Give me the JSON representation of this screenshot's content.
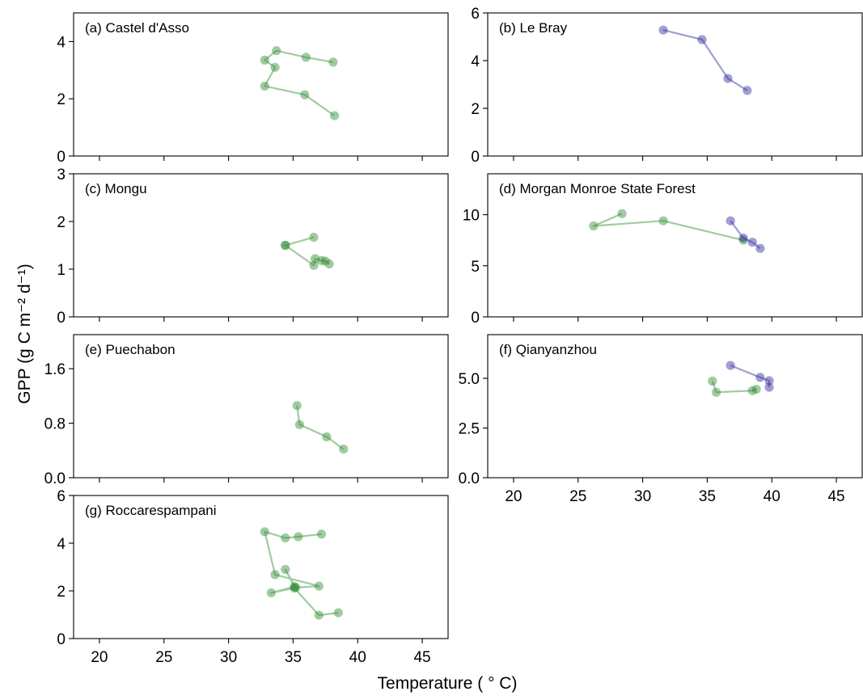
{
  "figure": {
    "xlabel": "Temperature ( ° C)",
    "ylabel": "GPP (g C m⁻² d⁻¹)"
  },
  "colors": {
    "green": "#2e8b2e",
    "blue": "#2b2b9e"
  },
  "chart_data": [
    {
      "type": "line",
      "title": "(a) Castel d'Asso",
      "xlim": [
        18,
        47
      ],
      "ylim": [
        0,
        5
      ],
      "yticks": [
        0,
        2,
        4
      ],
      "xticks": [
        20,
        25,
        30,
        35,
        40,
        45
      ],
      "show_xtick_labels": false,
      "series": [
        {
          "color": "green",
          "x": [
            38.2,
            35.9,
            32.8,
            33.6,
            32.8,
            33.7,
            36.0,
            38.1
          ],
          "y": [
            1.41,
            2.14,
            2.44,
            3.1,
            3.35,
            3.68,
            3.45,
            3.28
          ]
        }
      ]
    },
    {
      "type": "line",
      "title": "(b) Le Bray",
      "xlim": [
        18,
        47
      ],
      "ylim": [
        0,
        6
      ],
      "yticks": [
        0,
        2,
        4,
        6
      ],
      "xticks": [
        20,
        25,
        30,
        35,
        40,
        45
      ],
      "show_xtick_labels": false,
      "series": [
        {
          "color": "blue",
          "x": [
            31.6,
            34.6,
            36.6,
            38.1
          ],
          "y": [
            5.28,
            4.88,
            3.25,
            2.75
          ]
        }
      ]
    },
    {
      "type": "line",
      "title": "(c) Mongu",
      "xlim": [
        18,
        47
      ],
      "ylim": [
        0,
        3
      ],
      "yticks": [
        0,
        1,
        2,
        3
      ],
      "xticks": [
        20,
        25,
        30,
        35,
        40,
        45
      ],
      "show_xtick_labels": false,
      "series": [
        {
          "color": "green",
          "x": [
            36.6,
            34.4,
            34.4,
            36.6,
            36.7,
            37.2,
            37.5,
            37.8
          ],
          "y": [
            1.67,
            1.5,
            1.5,
            1.08,
            1.22,
            1.18,
            1.17,
            1.11
          ]
        }
      ]
    },
    {
      "type": "line",
      "title": "(d) Morgan Monroe State Forest",
      "xlim": [
        18,
        47
      ],
      "ylim": [
        0,
        14
      ],
      "yticks": [
        0,
        5,
        10
      ],
      "xticks": [
        20,
        25,
        30,
        35,
        40,
        45
      ],
      "show_xtick_labels": false,
      "series": [
        {
          "color": "green",
          "x": [
            28.4,
            26.2,
            31.6,
            37.8
          ],
          "y": [
            10.1,
            8.9,
            9.4,
            7.5
          ]
        },
        {
          "color": "blue",
          "x": [
            36.8,
            37.8,
            38.5,
            39.1
          ],
          "y": [
            9.4,
            7.7,
            7.3,
            6.7
          ]
        }
      ]
    },
    {
      "type": "line",
      "title": "(e) Puechabon",
      "xlim": [
        18,
        47
      ],
      "ylim": [
        0,
        2.1
      ],
      "yticks": [
        0.0,
        0.8,
        1.6
      ],
      "ytick_labels": [
        "0.0",
        "0.8",
        "1.6"
      ],
      "xticks": [
        20,
        25,
        30,
        35,
        40,
        45
      ],
      "show_xtick_labels": false,
      "series": [
        {
          "color": "green",
          "x": [
            35.3,
            35.5,
            37.6,
            38.9
          ],
          "y": [
            1.06,
            0.78,
            0.6,
            0.42
          ]
        }
      ]
    },
    {
      "type": "line",
      "title": "(f) Qianyanzhou",
      "xlim": [
        18,
        47
      ],
      "ylim": [
        0,
        7.2
      ],
      "yticks": [
        0.0,
        2.5,
        5.0
      ],
      "ytick_labels": [
        "0.0",
        "2.5",
        "5.0"
      ],
      "xticks": [
        20,
        25,
        30,
        35,
        40,
        45
      ],
      "xtick_labels": [
        "20",
        "25",
        "30",
        "35",
        "40",
        "45"
      ],
      "show_xtick_labels": true,
      "series": [
        {
          "color": "green",
          "x": [
            35.4,
            35.7,
            38.5,
            38.8
          ],
          "y": [
            4.86,
            4.3,
            4.38,
            4.45
          ]
        },
        {
          "color": "blue",
          "x": [
            36.8,
            39.1,
            39.8,
            39.8
          ],
          "y": [
            5.65,
            5.05,
            4.88,
            4.55
          ]
        }
      ]
    },
    {
      "type": "line",
      "title": "(g) Roccarespampani",
      "xlim": [
        18,
        47
      ],
      "ylim": [
        0,
        6
      ],
      "yticks": [
        0,
        2,
        4,
        6
      ],
      "xticks": [
        20,
        25,
        30,
        35,
        40,
        45
      ],
      "xtick_labels": [
        "20",
        "25",
        "30",
        "35",
        "40",
        "45"
      ],
      "show_xtick_labels": true,
      "series": [
        {
          "color": "green",
          "x": [
            38.5,
            37.0,
            35.1,
            33.3,
            35.1,
            34.4,
            35.2,
            37.0,
            33.6,
            32.8,
            34.4,
            35.4,
            37.2
          ],
          "y": [
            1.08,
            0.98,
            2.12,
            1.92,
            2.18,
            2.9,
            2.14,
            2.2,
            2.68,
            4.48,
            4.22,
            4.27,
            4.38
          ]
        }
      ]
    }
  ]
}
